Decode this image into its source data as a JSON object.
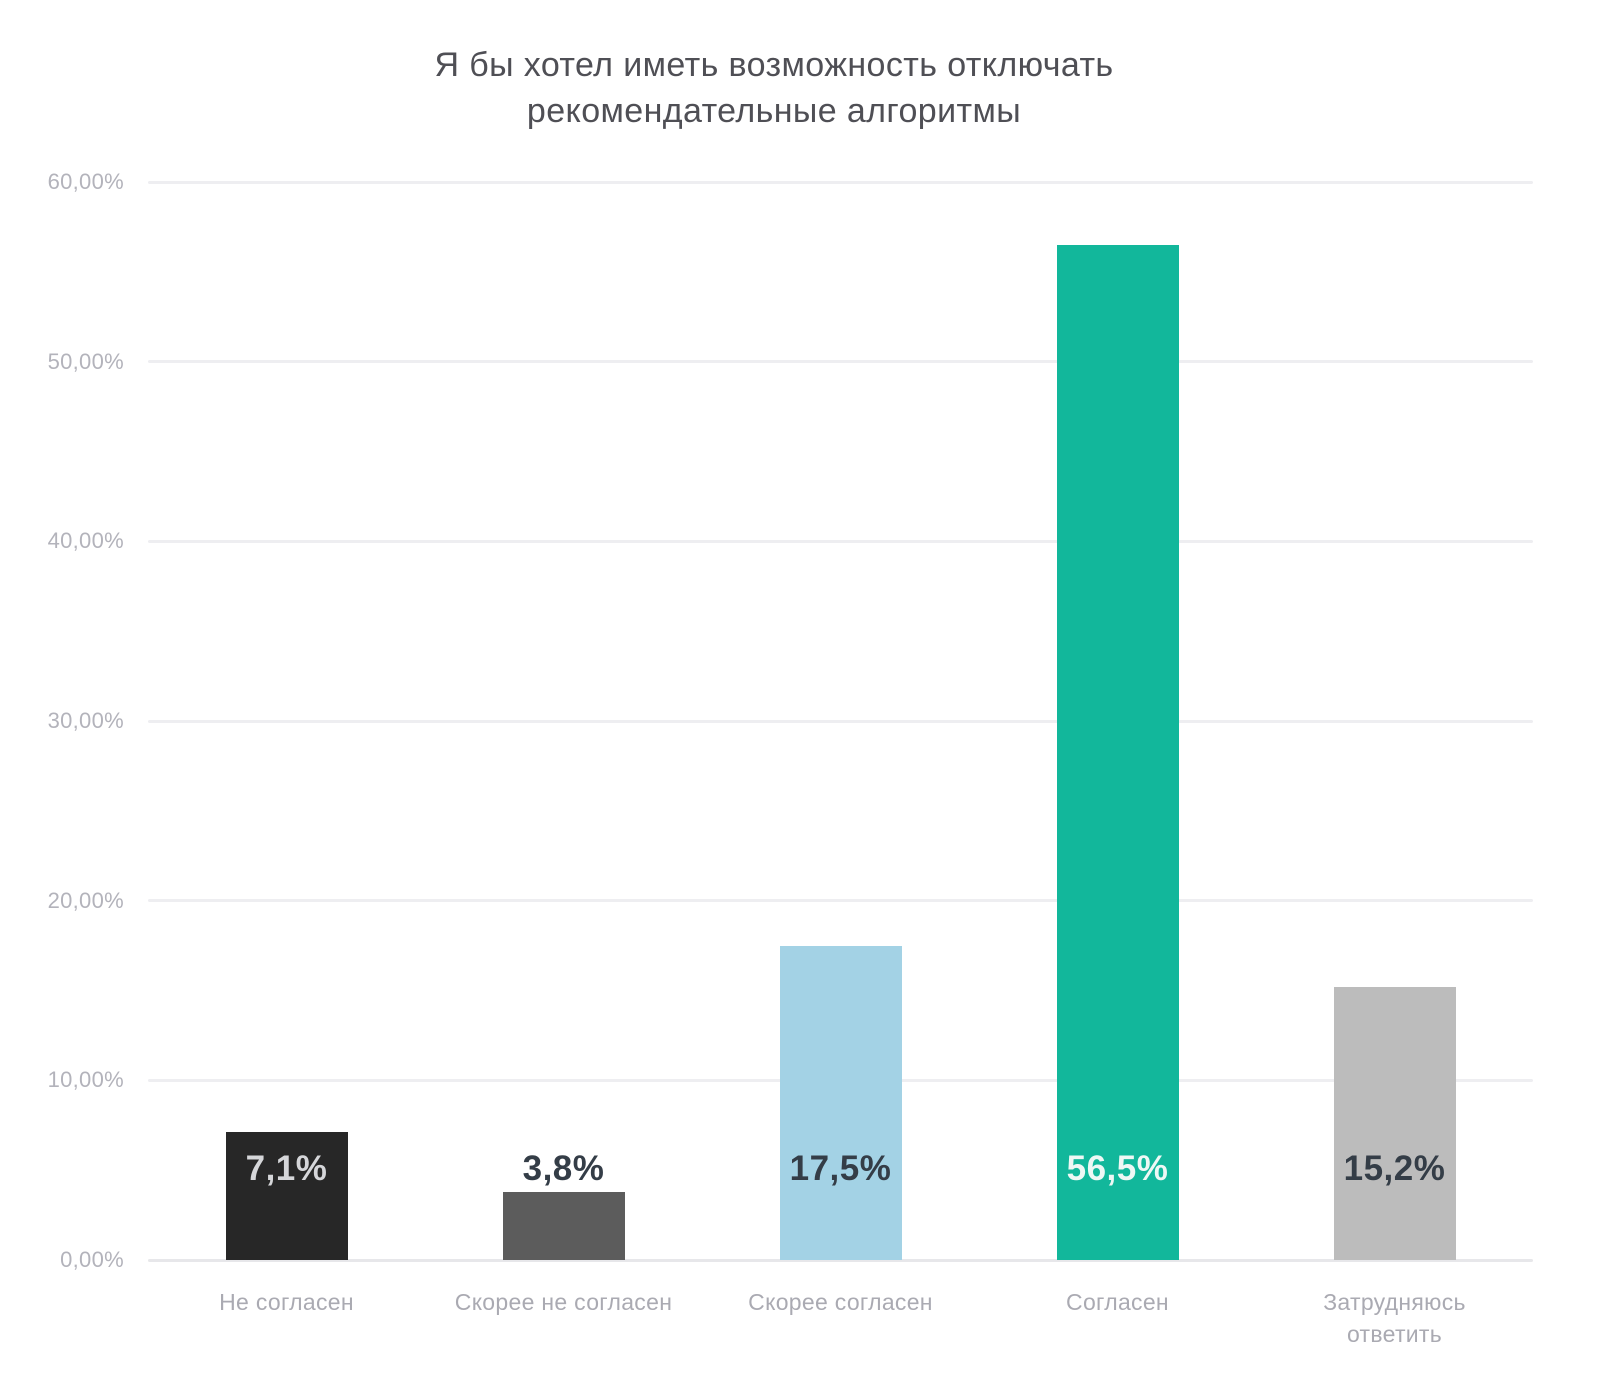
{
  "chart_data": {
    "type": "bar",
    "title": "Я бы хотел иметь возможность отключать рекомендательные алгоритмы",
    "title_lines": [
      "Я бы хотел иметь возможность отключать",
      "рекомендательные алгоритмы"
    ],
    "categories": [
      "Не согласен",
      "Скорее не согласен",
      "Скорее согласен",
      "Согласен",
      "Затрудняюсь ответить"
    ],
    "category_lines": [
      [
        "Не согласен"
      ],
      [
        "Скорее не согласен"
      ],
      [
        "Скорее согласен"
      ],
      [
        "Согласен"
      ],
      [
        "Затрудняюсь",
        "ответить"
      ]
    ],
    "values": [
      7.1,
      3.8,
      17.5,
      56.5,
      15.2
    ],
    "value_labels": [
      "7,1%",
      "3,8%",
      "17,5%",
      "56,5%",
      "15,2%"
    ],
    "bar_colors": [
      "#272727",
      "#5c5c5c",
      "#a3d2e5",
      "#12b79b",
      "#bcbcbc"
    ],
    "value_label_colors": [
      "#d5d6d9",
      "#343d47",
      "#343d47",
      "#eef8f5",
      "#343d47"
    ],
    "yticks": [
      {
        "value": 60,
        "label": "60,00%"
      },
      {
        "value": 50,
        "label": "50,00%"
      },
      {
        "value": 40,
        "label": "40,00%"
      },
      {
        "value": 30,
        "label": "30,00%"
      },
      {
        "value": 20,
        "label": "20,00%"
      },
      {
        "value": 10,
        "label": "10,00%"
      },
      {
        "value": 0,
        "label": "0,00%"
      }
    ],
    "ylim": [
      0,
      60
    ],
    "xlabel": "",
    "ylabel": "",
    "grid": true,
    "legend": false
  }
}
